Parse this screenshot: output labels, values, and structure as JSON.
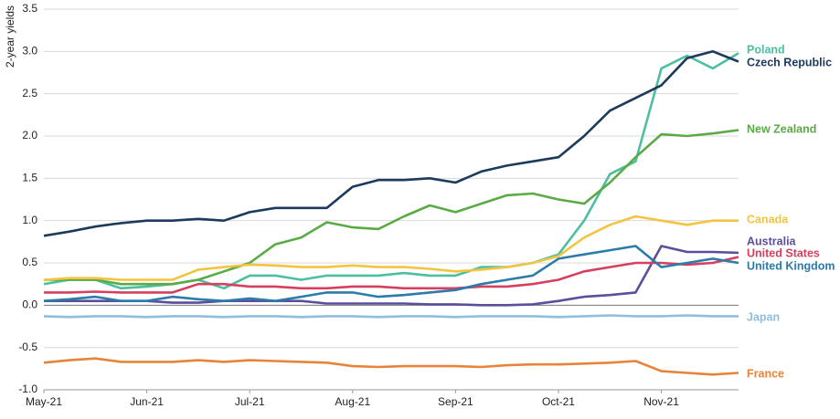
{
  "chart_data": {
    "type": "line",
    "y_label": "2-year yields",
    "categories": [
      "May-21",
      null,
      null,
      null,
      "Jun-21",
      null,
      null,
      null,
      "Jul-21",
      null,
      null,
      null,
      "Aug-21",
      null,
      null,
      null,
      "Sep-21",
      null,
      null,
      null,
      "Oct-21",
      null,
      null,
      null,
      "Nov-21",
      null,
      null,
      null
    ],
    "ylim": [
      -1.0,
      3.5
    ],
    "yticks": [
      3.5,
      {
        "value": 3.0,
        "label": "3.0"
      },
      2.5,
      {
        "value": 2.0,
        "label": "2.0"
      },
      1.5,
      {
        "value": 1.0,
        "label": "1.0"
      },
      0.5,
      {
        "value": 0.0,
        "label": "0.0"
      },
      -0.5,
      {
        "value": -1.0,
        "label": "-1.0"
      }
    ],
    "grid": true,
    "series": [
      {
        "name": "Poland",
        "color": "#4dbfa0",
        "values": [
          0.25,
          0.3,
          0.3,
          0.2,
          0.22,
          0.25,
          0.3,
          0.2,
          0.35,
          0.35,
          0.3,
          0.35,
          0.35,
          0.35,
          0.38,
          0.35,
          0.35,
          0.45,
          0.45,
          0.5,
          0.6,
          1.0,
          1.55,
          1.7,
          2.8,
          2.95,
          2.8,
          2.98
        ]
      },
      {
        "name": "Czech Republic",
        "color": "#1b3a5c",
        "values": [
          0.82,
          0.87,
          0.93,
          0.97,
          1.0,
          1.0,
          1.02,
          1.0,
          1.1,
          1.15,
          1.15,
          1.15,
          1.4,
          1.48,
          1.48,
          1.5,
          1.45,
          1.58,
          1.65,
          1.7,
          1.75,
          2.0,
          2.3,
          2.45,
          2.6,
          2.92,
          3.0,
          2.88
        ]
      },
      {
        "name": "New Zealand",
        "color": "#5aaa46",
        "values": [
          0.3,
          0.3,
          0.3,
          0.25,
          0.25,
          0.25,
          0.3,
          0.4,
          0.5,
          0.72,
          0.8,
          0.98,
          0.92,
          0.9,
          1.05,
          1.18,
          1.1,
          1.2,
          1.3,
          1.32,
          1.25,
          1.2,
          1.45,
          1.75,
          2.02,
          2.0,
          2.03,
          2.07
        ]
      },
      {
        "name": "Canada",
        "color": "#f2c440",
        "values": [
          0.3,
          0.32,
          0.32,
          0.3,
          0.3,
          0.3,
          0.42,
          0.45,
          0.48,
          0.47,
          0.45,
          0.45,
          0.47,
          0.45,
          0.45,
          0.43,
          0.4,
          0.42,
          0.45,
          0.5,
          0.58,
          0.8,
          0.95,
          1.05,
          1.0,
          0.95,
          1.0,
          1.0
        ]
      },
      {
        "name": "Australia",
        "color": "#5b4f9c",
        "values": [
          0.05,
          0.05,
          0.05,
          0.05,
          0.05,
          0.03,
          0.03,
          0.05,
          0.05,
          0.05,
          0.05,
          0.02,
          0.02,
          0.02,
          0.02,
          0.01,
          0.01,
          0.0,
          0.0,
          0.01,
          0.05,
          0.1,
          0.12,
          0.15,
          0.7,
          0.63,
          0.63,
          0.62
        ]
      },
      {
        "name": "United States",
        "color": "#d6405e",
        "values": [
          0.15,
          0.15,
          0.16,
          0.15,
          0.15,
          0.15,
          0.25,
          0.25,
          0.22,
          0.22,
          0.2,
          0.2,
          0.22,
          0.22,
          0.2,
          0.2,
          0.2,
          0.22,
          0.22,
          0.25,
          0.3,
          0.4,
          0.45,
          0.5,
          0.5,
          0.48,
          0.5,
          0.57
        ]
      },
      {
        "name": "United Kingdom",
        "color": "#2b7bab",
        "values": [
          0.05,
          0.07,
          0.1,
          0.05,
          0.05,
          0.1,
          0.07,
          0.05,
          0.08,
          0.05,
          0.1,
          0.15,
          0.15,
          0.1,
          0.12,
          0.15,
          0.18,
          0.25,
          0.3,
          0.35,
          0.55,
          0.6,
          0.65,
          0.7,
          0.45,
          0.5,
          0.55,
          0.5
        ]
      },
      {
        "name": "Japan",
        "color": "#8fbfdd",
        "values": [
          -0.13,
          -0.14,
          -0.13,
          -0.13,
          -0.14,
          -0.13,
          -0.13,
          -0.14,
          -0.13,
          -0.13,
          -0.14,
          -0.13,
          -0.13,
          -0.14,
          -0.13,
          -0.13,
          -0.14,
          -0.13,
          -0.13,
          -0.13,
          -0.14,
          -0.13,
          -0.12,
          -0.13,
          -0.13,
          -0.12,
          -0.13,
          -0.13
        ]
      },
      {
        "name": "France",
        "color": "#e8843a",
        "values": [
          -0.68,
          -0.65,
          -0.63,
          -0.67,
          -0.67,
          -0.67,
          -0.65,
          -0.67,
          -0.65,
          -0.66,
          -0.67,
          -0.68,
          -0.72,
          -0.73,
          -0.72,
          -0.72,
          -0.72,
          -0.73,
          -0.71,
          -0.7,
          -0.7,
          -0.69,
          -0.68,
          -0.66,
          -0.78,
          -0.8,
          -0.82,
          -0.8
        ]
      }
    ]
  }
}
